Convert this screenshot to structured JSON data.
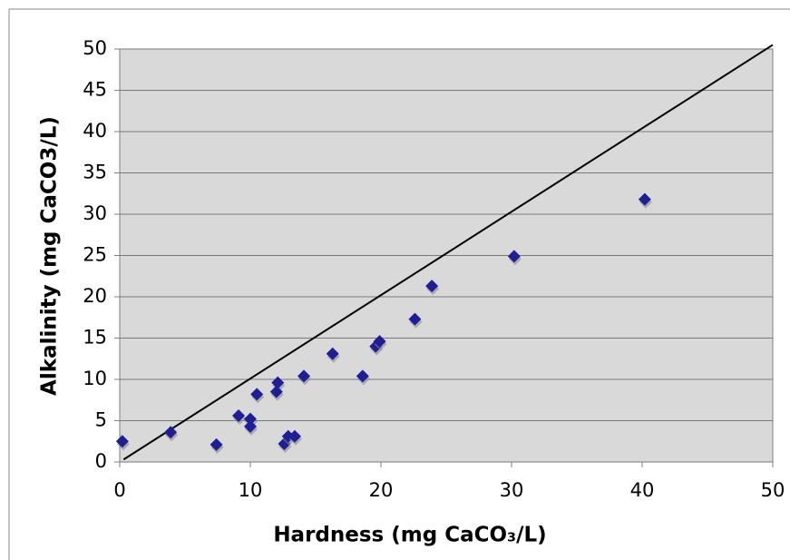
{
  "chart_data": {
    "type": "scatter",
    "x_label": "Hardness (mg CaCO₃/L)",
    "y_label": "Alkalinity (mg CaCO3/L)",
    "series": [
      {
        "color": "#1e1e96",
        "x": [
          0.2,
          3.9,
          7.4,
          9.1,
          10.0,
          10.0,
          10.5,
          12.1,
          12.0,
          12.6,
          12.9,
          13.4,
          14.1,
          16.3,
          18.6,
          19.6,
          19.9,
          22.6,
          23.9,
          30.2,
          40.2
        ],
        "values": [
          2.5,
          3.6,
          2.1,
          5.6,
          5.2,
          4.3,
          8.2,
          9.6,
          8.5,
          2.2,
          3.1,
          3.1,
          10.4,
          13.1,
          10.4,
          14.0,
          14.6,
          17.3,
          21.3,
          24.9,
          31.8
        ]
      }
    ],
    "reference_line": {
      "x": [
        0.3,
        50
      ],
      "values": [
        0.3,
        50.5
      ],
      "color": "#000000"
    },
    "xlim": [
      0,
      50
    ],
    "xticks": [
      0,
      10,
      20,
      30,
      40,
      50
    ],
    "ylim": [
      0,
      50
    ],
    "yticks": [
      0,
      5,
      10,
      15,
      20,
      25,
      30,
      35,
      40,
      45,
      50
    ],
    "grid": true
  }
}
